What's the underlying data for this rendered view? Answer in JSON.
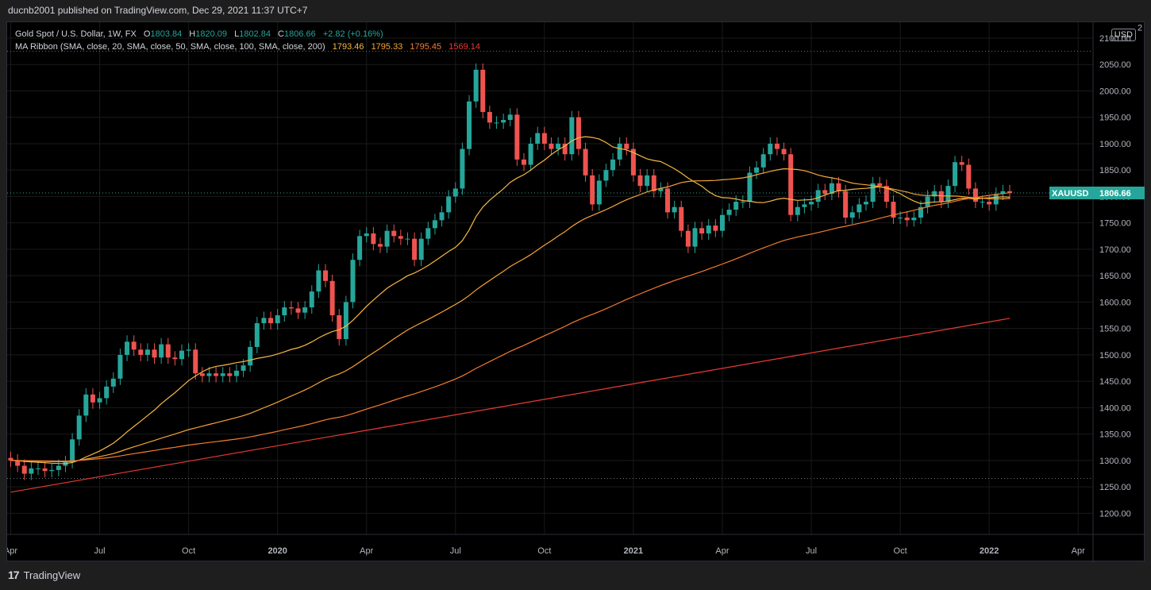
{
  "header": "ducnb2001 published on TradingView.com, Dec 29, 2021 11:37 UTC+7",
  "footer": {
    "brand": "TradingView",
    "logo": "17"
  },
  "legend": {
    "symbol": "Gold Spot / U.S. Dollar, 1W, FX",
    "o_label": "O",
    "o": "1803.84",
    "h_label": "H",
    "h": "1820.09",
    "l_label": "L",
    "l": "1802.84",
    "c_label": "C",
    "c": "1806.66",
    "change": "+2.82 (+0.16%)",
    "ma_label": "MA Ribbon (SMA, close, 20, SMA, close, 50, SMA, close, 100, SMA, close, 200)",
    "ma20": "1793.46",
    "ma50": "1795.33",
    "ma100": "1795.45",
    "ma200": "1569.14"
  },
  "currency": "USD",
  "colors": {
    "up": "#26a69a",
    "down": "#ef5350",
    "ma20": "#f5b942",
    "ma50": "#f7a436",
    "ma100": "#f57c2e",
    "ma200": "#e53935",
    "bg": "#000000"
  },
  "chart_data": {
    "type": "candlestick",
    "symbol_label": "XAUUSD",
    "last_price": "1806.66",
    "y_ticks": [
      "1200.00",
      "1250.00",
      "1300.00",
      "1350.00",
      "1400.00",
      "1450.00",
      "1500.00",
      "1550.00",
      "1600.00",
      "1650.00",
      "1700.00",
      "1750.00",
      "1800.00",
      "1850.00",
      "1900.00",
      "1950.00",
      "2000.00",
      "2050.00",
      "2100.00"
    ],
    "y_top_partial": "2",
    "x_ticks": [
      {
        "label": "Apr",
        "w": 0,
        "bold": false
      },
      {
        "label": "Jul",
        "w": 13,
        "bold": false
      },
      {
        "label": "Oct",
        "w": 26,
        "bold": false
      },
      {
        "label": "2020",
        "w": 39,
        "bold": true
      },
      {
        "label": "Apr",
        "w": 52,
        "bold": false
      },
      {
        "label": "Jul",
        "w": 65,
        "bold": false
      },
      {
        "label": "Oct",
        "w": 78,
        "bold": false
      },
      {
        "label": "2021",
        "w": 91,
        "bold": true
      },
      {
        "label": "Apr",
        "w": 104,
        "bold": false
      },
      {
        "label": "Jul",
        "w": 117,
        "bold": false
      },
      {
        "label": "Oct",
        "w": 130,
        "bold": false
      },
      {
        "label": "2022",
        "w": 143,
        "bold": true
      },
      {
        "label": "Apr",
        "w": 156,
        "bold": false
      }
    ],
    "ref_lines": [
      2075,
      1266
    ],
    "ylim": [
      1160,
      2130
    ],
    "close": [
      1300,
      1290,
      1275,
      1285,
      1285,
      1280,
      1282,
      1290,
      1297,
      1340,
      1385,
      1425,
      1410,
      1418,
      1440,
      1455,
      1500,
      1525,
      1510,
      1500,
      1510,
      1495,
      1520,
      1495,
      1492,
      1508,
      1510,
      1465,
      1460,
      1465,
      1460,
      1465,
      1460,
      1470,
      1480,
      1515,
      1560,
      1570,
      1560,
      1575,
      1590,
      1588,
      1580,
      1590,
      1620,
      1660,
      1640,
      1575,
      1530,
      1600,
      1680,
      1725,
      1730,
      1710,
      1705,
      1735,
      1725,
      1720,
      1720,
      1680,
      1720,
      1740,
      1755,
      1770,
      1800,
      1815,
      1890,
      1980,
      2040,
      1960,
      1940,
      1940,
      1945,
      1955,
      1870,
      1860,
      1900,
      1920,
      1900,
      1890,
      1900,
      1880,
      1950,
      1890,
      1840,
      1785,
      1830,
      1850,
      1870,
      1900,
      1890,
      1840,
      1820,
      1840,
      1810,
      1815,
      1770,
      1780,
      1735,
      1705,
      1740,
      1730,
      1745,
      1735,
      1765,
      1775,
      1790,
      1790,
      1845,
      1855,
      1880,
      1900,
      1890,
      1880,
      1765,
      1780,
      1785,
      1790,
      1812,
      1805,
      1825,
      1810,
      1760,
      1770,
      1785,
      1790,
      1825,
      1820,
      1790,
      1760,
      1760,
      1755,
      1760,
      1780,
      1800,
      1810,
      1790,
      1820,
      1865,
      1860,
      1815,
      1790,
      1790,
      1785,
      1805,
      1810,
      1806.66
    ],
    "ma": [
      {
        "name": "SMA 20",
        "period": 20,
        "value": "1793.46",
        "color": "#f5b942"
      },
      {
        "name": "SMA 50",
        "period": 50,
        "value": "1795.33",
        "color": "#f7a436"
      },
      {
        "name": "SMA 100",
        "period": 100,
        "value": "1795.45",
        "color": "#f57c2e"
      },
      {
        "name": "SMA 200",
        "period": 200,
        "value": "1569.14",
        "color": "#e53935"
      }
    ]
  }
}
